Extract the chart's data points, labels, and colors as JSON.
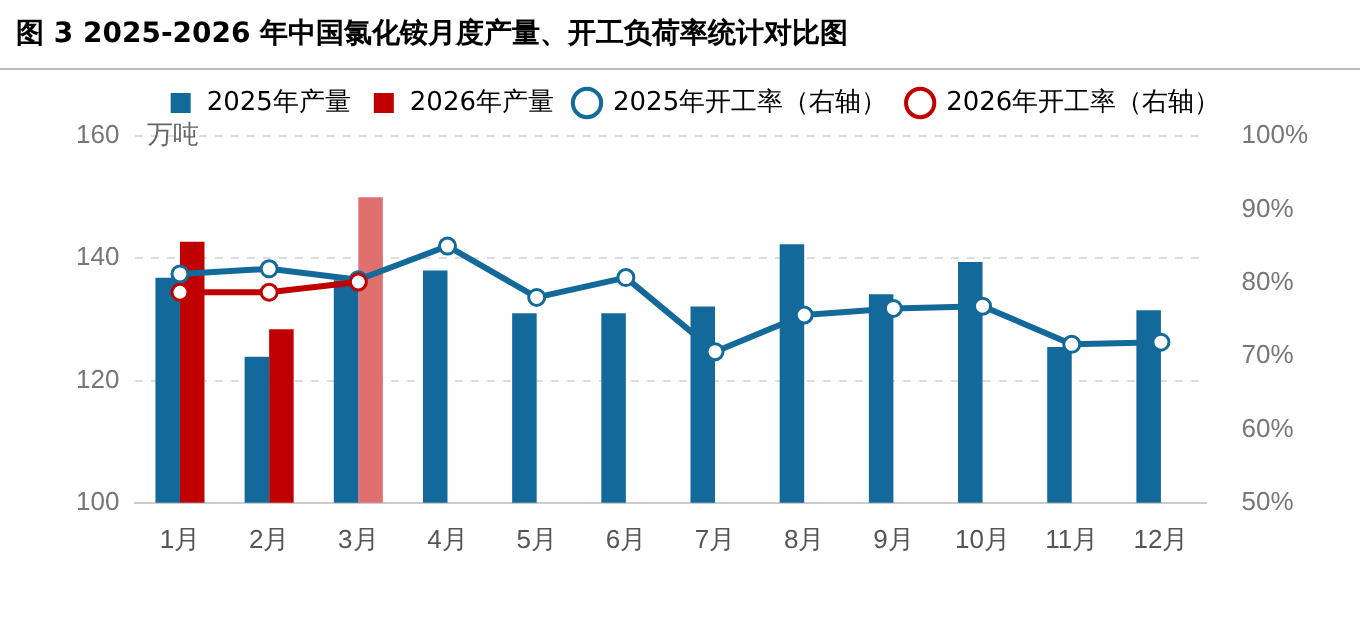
{
  "chart_data": {
    "type": "bar",
    "title": "图 3 2025-2026 年中国氯化铵月度产量、开工负荷率统计对比图",
    "ylabel": "万吨",
    "categories": [
      "1月",
      "2月",
      "3月",
      "4月",
      "5月",
      "6月",
      "7月",
      "8月",
      "9月",
      "10月",
      "11月",
      "12月"
    ],
    "series": [
      {
        "name": "2025年产量",
        "color": "#136a9a",
        "values": [
          136.8,
          123.9,
          136.4,
          138,
          131,
          131,
          132.1,
          142.3,
          134.1,
          139.4,
          125.5,
          131.5
        ]
      },
      {
        "name": "2026年产量",
        "color": "#c00000",
        "colors": [
          "#c00000",
          "#c00000",
          "#e07070",
          null,
          null,
          null,
          null,
          null,
          null,
          null,
          null,
          null
        ],
        "values": [
          142.7,
          128.4,
          150,
          null,
          null,
          null,
          null,
          null,
          null,
          null,
          null,
          null
        ]
      },
      {
        "name": "2025年开工率（右轴）",
        "type": "line",
        "axis": "y2",
        "color": "#136a9a",
        "values": [
          81.2,
          81.9,
          80.4,
          85,
          78,
          80.7,
          70.6,
          75.6,
          76.5,
          76.8,
          71.6,
          71.9
        ]
      },
      {
        "name": "2026年开工率（右轴）",
        "type": "line",
        "axis": "y2",
        "color": "#c00000",
        "values": [
          78.7,
          78.7,
          80.1,
          null,
          null,
          null,
          null,
          null,
          null,
          null,
          null,
          null
        ]
      }
    ],
    "ylim": [
      100,
      160
    ],
    "yticks": [
      100,
      120,
      140,
      160
    ],
    "y2lim": [
      50,
      100
    ],
    "y2ticks": [
      {
        "value": 50,
        "label": "50%"
      },
      {
        "value": 60,
        "label": "60%"
      },
      {
        "value": 70,
        "label": "70%"
      },
      {
        "value": 80,
        "label": "80%"
      },
      {
        "value": 90,
        "label": "90%"
      },
      {
        "value": 100,
        "label": "100%"
      }
    ],
    "grid": "y",
    "legend": "top",
    "marker": "circle",
    "line_style": "solid"
  }
}
